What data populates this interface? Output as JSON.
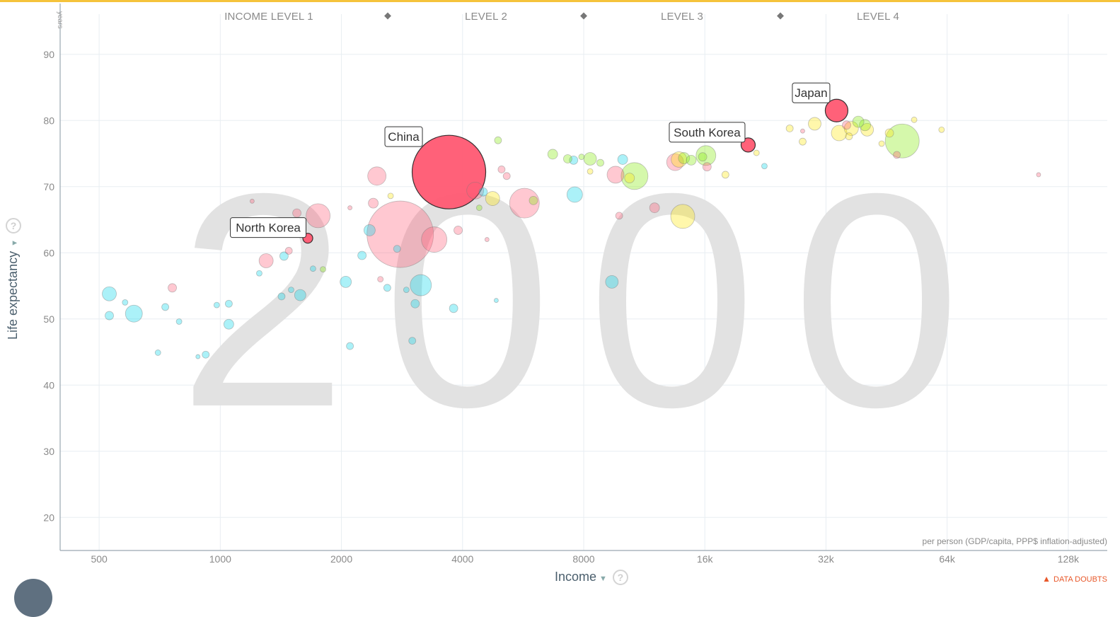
{
  "colors": {
    "top_strip": "#f5c33b",
    "grid": "#e8eef2",
    "axis": "#9aa7b0",
    "tick_text": "#8a8a8a",
    "year_watermark": "#e2e2e2",
    "asia": "#ff5872",
    "africa": "#00d5e9",
    "americas": "#7feb00",
    "europe": "#ffe700"
  },
  "levels": [
    "INCOME LEVEL 1",
    "LEVEL 2",
    "LEVEL 3",
    "LEVEL 4"
  ],
  "chart_data": {
    "type": "scatter",
    "year": "2000",
    "xlabel": "Income",
    "ylabel": "Life expectancy",
    "y_unit": "years",
    "x_note": "per person (GDP/capita, PPP$ inflation-adjusted)",
    "x_scale": "log2",
    "xlim": [
      400,
      160000
    ],
    "ylim": [
      15,
      95
    ],
    "x_ticks": [
      {
        "value": 500,
        "label": "500"
      },
      {
        "value": 1000,
        "label": "1000"
      },
      {
        "value": 2000,
        "label": "2000"
      },
      {
        "value": 4000,
        "label": "4000"
      },
      {
        "value": 8000,
        "label": "8000"
      },
      {
        "value": 16000,
        "label": "16k"
      },
      {
        "value": 32000,
        "label": "32k"
      },
      {
        "value": 64000,
        "label": "64k"
      },
      {
        "value": 128000,
        "label": "128k"
      }
    ],
    "y_ticks": [
      20,
      30,
      40,
      50,
      60,
      70,
      80,
      90
    ],
    "level_boundaries": [
      2900,
      8000,
      22000
    ],
    "bubbles": [
      {
        "x": 3700,
        "y": 72.2,
        "r": 52,
        "color": "asia",
        "highlight": true,
        "label": "China"
      },
      {
        "x": 2800,
        "y": 62.8,
        "r": 47,
        "color": "asia"
      },
      {
        "x": 1650,
        "y": 62.2,
        "r": 7,
        "color": "asia",
        "highlight": true,
        "label": "North Korea"
      },
      {
        "x": 20500,
        "y": 76.3,
        "r": 10,
        "color": "asia",
        "highlight": true,
        "label": "South Korea"
      },
      {
        "x": 34000,
        "y": 81.5,
        "r": 16,
        "color": "asia",
        "highlight": true,
        "label": "Japan"
      },
      {
        "x": 2450,
        "y": 71.6,
        "r": 13,
        "color": "asia"
      },
      {
        "x": 1750,
        "y": 65.6,
        "r": 17,
        "color": "asia"
      },
      {
        "x": 3400,
        "y": 62.0,
        "r": 18,
        "color": "asia"
      },
      {
        "x": 5700,
        "y": 67.5,
        "r": 21,
        "color": "asia"
      },
      {
        "x": 4300,
        "y": 69.4,
        "r": 12,
        "color": "asia"
      },
      {
        "x": 1300,
        "y": 58.8,
        "r": 10,
        "color": "asia"
      },
      {
        "x": 3900,
        "y": 63.4,
        "r": 6,
        "color": "asia"
      },
      {
        "x": 2400,
        "y": 67.5,
        "r": 7,
        "color": "asia"
      },
      {
        "x": 9600,
        "y": 71.8,
        "r": 12,
        "color": "asia"
      },
      {
        "x": 13500,
        "y": 73.7,
        "r": 12,
        "color": "asia"
      },
      {
        "x": 12000,
        "y": 66.8,
        "r": 7,
        "color": "asia"
      },
      {
        "x": 9800,
        "y": 65.6,
        "r": 5,
        "color": "asia"
      },
      {
        "x": 760,
        "y": 54.7,
        "r": 6,
        "color": "asia"
      },
      {
        "x": 1550,
        "y": 66.0,
        "r": 6,
        "color": "asia"
      },
      {
        "x": 1200,
        "y": 67.8,
        "r": 3,
        "color": "asia"
      },
      {
        "x": 16200,
        "y": 73.0,
        "r": 6,
        "color": "asia"
      },
      {
        "x": 5150,
        "y": 71.6,
        "r": 5,
        "color": "asia"
      },
      {
        "x": 5000,
        "y": 72.6,
        "r": 5,
        "color": "asia"
      },
      {
        "x": 48000,
        "y": 74.8,
        "r": 5,
        "color": "asia"
      },
      {
        "x": 36000,
        "y": 79.3,
        "r": 6,
        "color": "asia"
      },
      {
        "x": 28000,
        "y": 78.4,
        "r": 3,
        "color": "asia"
      },
      {
        "x": 108000,
        "y": 71.8,
        "r": 3,
        "color": "asia"
      },
      {
        "x": 1480,
        "y": 60.3,
        "r": 5,
        "color": "asia"
      },
      {
        "x": 2100,
        "y": 66.8,
        "r": 3,
        "color": "asia"
      },
      {
        "x": 4600,
        "y": 62.0,
        "r": 3,
        "color": "asia"
      },
      {
        "x": 2500,
        "y": 56.0,
        "r": 4,
        "color": "asia"
      },
      {
        "x": 530,
        "y": 53.8,
        "r": 10,
        "color": "africa"
      },
      {
        "x": 610,
        "y": 50.8,
        "r": 12,
        "color": "africa"
      },
      {
        "x": 530,
        "y": 50.5,
        "r": 6,
        "color": "africa"
      },
      {
        "x": 580,
        "y": 52.5,
        "r": 4,
        "color": "africa"
      },
      {
        "x": 730,
        "y": 51.8,
        "r": 5,
        "color": "africa"
      },
      {
        "x": 790,
        "y": 49.6,
        "r": 4,
        "color": "africa"
      },
      {
        "x": 700,
        "y": 44.9,
        "r": 4,
        "color": "africa"
      },
      {
        "x": 920,
        "y": 44.6,
        "r": 5,
        "color": "africa"
      },
      {
        "x": 880,
        "y": 44.3,
        "r": 3,
        "color": "africa"
      },
      {
        "x": 1050,
        "y": 49.2,
        "r": 7,
        "color": "africa"
      },
      {
        "x": 1050,
        "y": 52.3,
        "r": 5,
        "color": "africa"
      },
      {
        "x": 980,
        "y": 52.1,
        "r": 4,
        "color": "africa"
      },
      {
        "x": 1580,
        "y": 53.6,
        "r": 8,
        "color": "africa"
      },
      {
        "x": 1420,
        "y": 53.4,
        "r": 5,
        "color": "africa"
      },
      {
        "x": 1500,
        "y": 54.4,
        "r": 4,
        "color": "africa"
      },
      {
        "x": 1440,
        "y": 59.5,
        "r": 6,
        "color": "africa"
      },
      {
        "x": 2050,
        "y": 55.6,
        "r": 8,
        "color": "africa"
      },
      {
        "x": 2100,
        "y": 45.9,
        "r": 5,
        "color": "africa"
      },
      {
        "x": 2250,
        "y": 59.6,
        "r": 6,
        "color": "africa"
      },
      {
        "x": 2350,
        "y": 63.4,
        "r": 8,
        "color": "africa"
      },
      {
        "x": 3150,
        "y": 55.1,
        "r": 15,
        "color": "africa"
      },
      {
        "x": 3050,
        "y": 52.3,
        "r": 6,
        "color": "africa"
      },
      {
        "x": 3000,
        "y": 46.7,
        "r": 5,
        "color": "africa"
      },
      {
        "x": 2750,
        "y": 60.6,
        "r": 5,
        "color": "africa"
      },
      {
        "x": 2600,
        "y": 54.7,
        "r": 5,
        "color": "africa"
      },
      {
        "x": 3800,
        "y": 51.6,
        "r": 6,
        "color": "africa"
      },
      {
        "x": 4500,
        "y": 69.2,
        "r": 6,
        "color": "africa"
      },
      {
        "x": 7600,
        "y": 68.8,
        "r": 11,
        "color": "africa"
      },
      {
        "x": 9400,
        "y": 55.6,
        "r": 9,
        "color": "africa"
      },
      {
        "x": 10000,
        "y": 74.1,
        "r": 7,
        "color": "africa"
      },
      {
        "x": 1700,
        "y": 57.6,
        "r": 4,
        "color": "africa"
      },
      {
        "x": 4850,
        "y": 52.8,
        "r": 3,
        "color": "africa"
      },
      {
        "x": 2900,
        "y": 54.4,
        "r": 4,
        "color": "africa"
      },
      {
        "x": 22500,
        "y": 73.1,
        "r": 4,
        "color": "africa"
      },
      {
        "x": 7550,
        "y": 74.0,
        "r": 6,
        "color": "africa"
      },
      {
        "x": 1250,
        "y": 56.9,
        "r": 4,
        "color": "africa"
      },
      {
        "x": 10700,
        "y": 71.6,
        "r": 19,
        "color": "americas"
      },
      {
        "x": 16100,
        "y": 74.7,
        "r": 14,
        "color": "americas"
      },
      {
        "x": 49500,
        "y": 76.9,
        "r": 24,
        "color": "americas"
      },
      {
        "x": 7300,
        "y": 74.2,
        "r": 6,
        "color": "americas"
      },
      {
        "x": 8300,
        "y": 74.2,
        "r": 9,
        "color": "americas"
      },
      {
        "x": 6700,
        "y": 74.9,
        "r": 7,
        "color": "americas"
      },
      {
        "x": 14200,
        "y": 74.3,
        "r": 8,
        "color": "americas"
      },
      {
        "x": 15800,
        "y": 74.5,
        "r": 6,
        "color": "americas"
      },
      {
        "x": 4900,
        "y": 77.0,
        "r": 5,
        "color": "americas"
      },
      {
        "x": 8800,
        "y": 73.6,
        "r": 5,
        "color": "americas"
      },
      {
        "x": 6000,
        "y": 67.9,
        "r": 6,
        "color": "americas"
      },
      {
        "x": 14800,
        "y": 74.0,
        "r": 7,
        "color": "americas"
      },
      {
        "x": 1800,
        "y": 57.5,
        "r": 4,
        "color": "americas"
      },
      {
        "x": 40000,
        "y": 79.3,
        "r": 8,
        "color": "americas"
      },
      {
        "x": 38500,
        "y": 79.8,
        "r": 8,
        "color": "americas"
      },
      {
        "x": 4400,
        "y": 66.8,
        "r": 4,
        "color": "americas"
      },
      {
        "x": 7900,
        "y": 74.5,
        "r": 4,
        "color": "americas"
      },
      {
        "x": 4750,
        "y": 68.2,
        "r": 10,
        "color": "europe"
      },
      {
        "x": 14100,
        "y": 65.5,
        "r": 17,
        "color": "europe"
      },
      {
        "x": 13800,
        "y": 74.1,
        "r": 11,
        "color": "europe"
      },
      {
        "x": 30000,
        "y": 79.5,
        "r": 9,
        "color": "europe"
      },
      {
        "x": 34500,
        "y": 78.1,
        "r": 11,
        "color": "europe"
      },
      {
        "x": 37000,
        "y": 78.8,
        "r": 10,
        "color": "europe"
      },
      {
        "x": 40500,
        "y": 78.6,
        "r": 9,
        "color": "europe"
      },
      {
        "x": 10400,
        "y": 71.3,
        "r": 7,
        "color": "europe"
      },
      {
        "x": 18000,
        "y": 71.8,
        "r": 5,
        "color": "europe"
      },
      {
        "x": 26000,
        "y": 78.8,
        "r": 5,
        "color": "europe"
      },
      {
        "x": 28000,
        "y": 76.8,
        "r": 5,
        "color": "europe"
      },
      {
        "x": 46000,
        "y": 78.1,
        "r": 6,
        "color": "europe"
      },
      {
        "x": 53000,
        "y": 80.1,
        "r": 4,
        "color": "europe"
      },
      {
        "x": 62000,
        "y": 78.6,
        "r": 4,
        "color": "europe"
      },
      {
        "x": 8300,
        "y": 72.3,
        "r": 4,
        "color": "europe"
      },
      {
        "x": 21500,
        "y": 75.1,
        "r": 4,
        "color": "europe"
      },
      {
        "x": 44000,
        "y": 76.5,
        "r": 4,
        "color": "europe"
      },
      {
        "x": 36500,
        "y": 77.6,
        "r": 5,
        "color": "europe"
      },
      {
        "x": 2650,
        "y": 68.6,
        "r": 4,
        "color": "europe"
      }
    ]
  },
  "data_doubts_label": "DATA DOUBTS"
}
